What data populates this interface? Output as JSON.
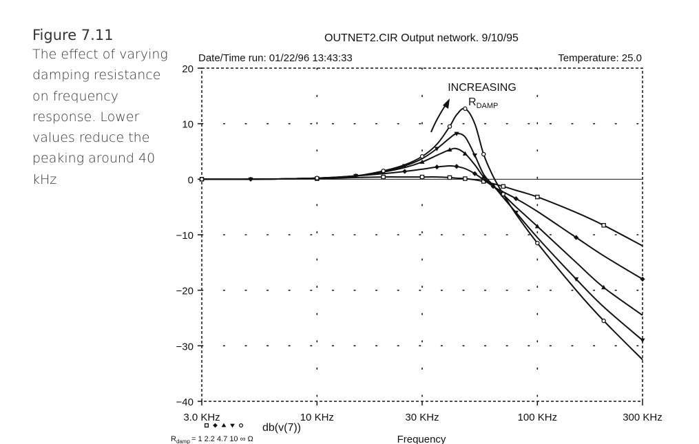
{
  "caption": {
    "label": "Figure 7.11",
    "text": "The effect of varying damping resistance on frequency response. Lower values reduce the peaking around 40 kHz"
  },
  "chart_data": {
    "type": "line",
    "title": "OUTNET2.CIR Output network. 9/10/95",
    "header_left": "Date/Time run: 01/22/96 13:43:33",
    "header_right": "Temperature: 25.0",
    "xlabel": "Frequency",
    "x_scale": "log",
    "xlim": [
      3000,
      300000
    ],
    "x_ticks": [
      3000,
      10000,
      30000,
      100000,
      300000
    ],
    "x_tick_labels": [
      "3.0 KHz",
      "10 KHz",
      "30 KHz",
      "100 KHz",
      "300 KHz"
    ],
    "ylim": [
      -40,
      20
    ],
    "y_ticks": [
      20,
      10,
      0,
      -10,
      -20,
      -30,
      -40
    ],
    "y_tick_labels": [
      "20",
      "10",
      "0",
      "−10",
      "−20",
      "−30",
      "−40"
    ],
    "grid": "dotted",
    "annotation": {
      "line1": "INCREASING",
      "r_main": "R",
      "r_sub": "DAMP"
    },
    "legend": {
      "trace": "db(v(7))",
      "r_main": "R",
      "r_sub": "damp",
      "r_values": "= 1  2.2  4.7  10 ∞ Ω",
      "symbols": [
        "square",
        "diamond",
        "triangle-up",
        "triangle-down",
        "circle"
      ]
    },
    "x": [
      3000,
      5000,
      10000,
      15000,
      20000,
      25000,
      30000,
      35000,
      40000,
      43000,
      47000,
      52000,
      57000,
      63000,
      70000,
      80000,
      100000,
      150000,
      200000,
      300000
    ],
    "series": [
      {
        "name": "1",
        "marker": "square",
        "values": [
          0,
          0,
          0.1,
          0.3,
          0.4,
          0.4,
          0.4,
          0.4,
          0.3,
          0.2,
          0.1,
          -0.1,
          -0.4,
          -0.8,
          -1.3,
          -2.0,
          -3.2,
          -6.0,
          -8.3,
          -12.0
        ]
      },
      {
        "name": "2.2",
        "marker": "diamond",
        "values": [
          0,
          0,
          0.2,
          0.6,
          1.0,
          1.4,
          1.8,
          2.2,
          2.4,
          2.3,
          1.9,
          1.0,
          -0.1,
          -1.3,
          -2.3,
          -3.5,
          -5.8,
          -10.5,
          -13.8,
          -18.0
        ]
      },
      {
        "name": "4.7",
        "marker": "triangle-up",
        "values": [
          0,
          0,
          0.2,
          0.6,
          1.3,
          2.1,
          3.1,
          4.3,
          5.3,
          5.5,
          4.6,
          2.6,
          0.4,
          -1.3,
          -2.8,
          -5.0,
          -8.5,
          -15.0,
          -19.5,
          -24.5
        ]
      },
      {
        "name": "10",
        "marker": "triangle-down",
        "values": [
          0,
          0,
          0.2,
          0.6,
          1.4,
          2.4,
          3.7,
          5.5,
          7.4,
          8.2,
          7.6,
          4.3,
          0.9,
          -1.1,
          -3.3,
          -6.0,
          -10.5,
          -18.0,
          -23.0,
          -29.0
        ]
      },
      {
        "name": "∞",
        "marker": "circle",
        "values": [
          0,
          0,
          0.2,
          0.6,
          1.5,
          2.6,
          4.1,
          6.3,
          9.5,
          11.6,
          12.7,
          10.0,
          4.5,
          0.5,
          -2.7,
          -6.3,
          -11.5,
          -20.0,
          -25.5,
          -32.5
        ]
      }
    ]
  }
}
